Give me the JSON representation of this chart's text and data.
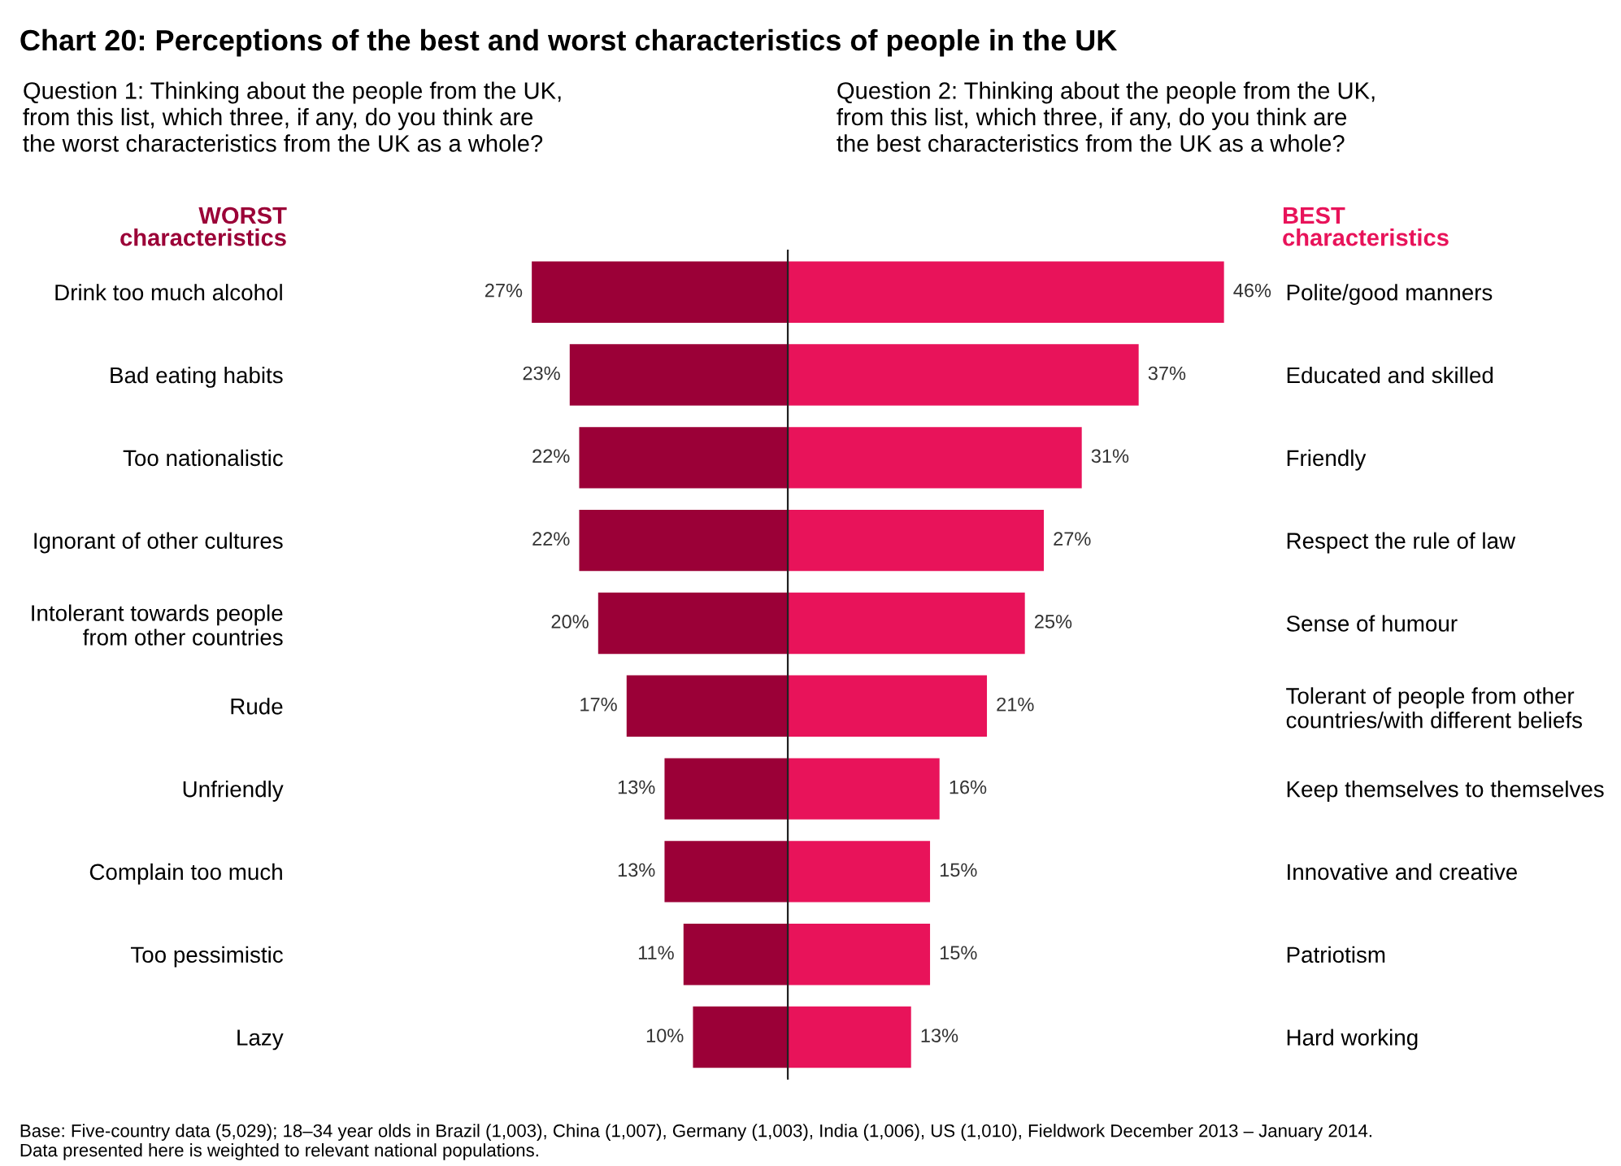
{
  "chart_data": [
    {
      "type": "bar",
      "orientation": "horizontal",
      "title": "Chart 20: Perceptions of the best and worst characteristics of people in the UK",
      "subtitle": "Question 1: Thinking about the people from the UK,\nfrom this list, which three, if any, do you think are\nthe worst characteristics from the UK as a whole?",
      "categories": [
        "Drink too much alcohol",
        "Bad eating habits",
        "Too nationalistic",
        "Ignorant of other cultures",
        "Intolerant towards people\nfrom other countries",
        "Rude",
        "Unfriendly",
        "Complain too much",
        "Too pessimistic",
        "Lazy"
      ],
      "series": [
        {
          "name": "WORST\ncharacteristics",
          "color": "#9b0037",
          "values": [
            27,
            23,
            22,
            22,
            20,
            17,
            13,
            13,
            11,
            10
          ],
          "value_labels": [
            "27%",
            "23%",
            "22%",
            "22%",
            "20%",
            "17%",
            "13%",
            "13%",
            "11%",
            "10%"
          ]
        }
      ],
      "tick_labels": false,
      "annotations": [
        "Base: Five-country data (5,029); 18–34 year olds in Brazil (1,003), China (1,007), Germany (1,003), India (1,006), US (1,010), Fieldwork December 2013 – January 2014.\nData presented here is weighted to relevant national populations."
      ]
    },
    {
      "type": "bar",
      "orientation": "horizontal",
      "subtitle": "Question 2: Thinking about the people from the UK,\nfrom this list, which three, if any, do you think are\nthe best characteristics from the UK as a whole?",
      "categories": [
        "Polite/good manners",
        "Educated and skilled",
        "Friendly",
        "Respect the rule of law",
        "Sense of humour",
        "Tolerant of people from other\ncountries/with different beliefs",
        "Keep themselves to themselves",
        "Innovative and creative",
        "Patriotism",
        "Hard working"
      ],
      "series": [
        {
          "name": "BEST\ncharacteristics",
          "color": "#e8135a",
          "values": [
            46,
            37,
            31,
            27,
            25,
            21,
            16,
            15,
            15,
            13
          ],
          "value_labels": [
            "46%",
            "37%",
            "31%",
            "27%",
            "25%",
            "21%",
            "16%",
            "15%",
            "15%",
            "13%"
          ]
        }
      ],
      "tick_labels": false
    }
  ]
}
